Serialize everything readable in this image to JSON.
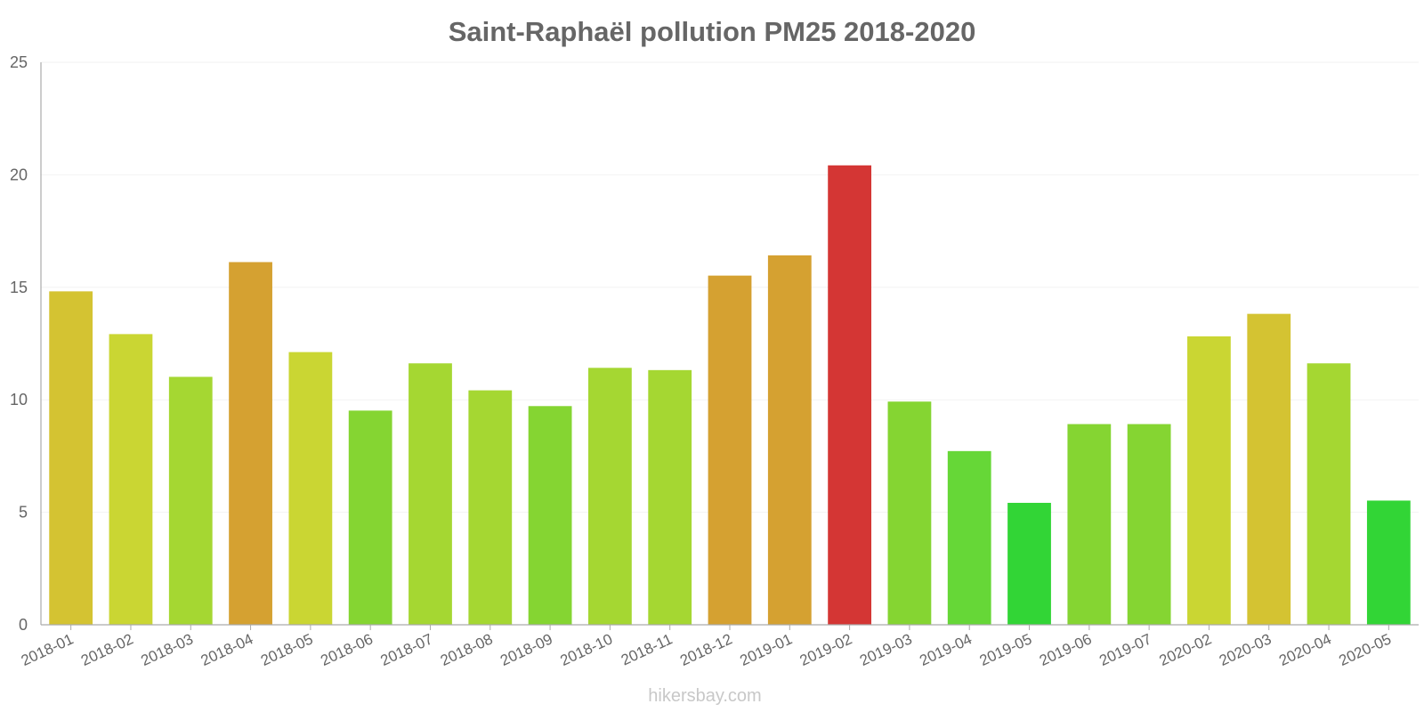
{
  "chart_data": {
    "type": "bar",
    "title": "Saint-Raphaël pollution PM25 2018-2020",
    "xlabel": "",
    "ylabel": "",
    "ylim": [
      0,
      25
    ],
    "yticks": [
      0,
      5,
      10,
      15,
      20,
      25
    ],
    "grid": true,
    "categories": [
      "2018-01",
      "2018-02",
      "2018-03",
      "2018-04",
      "2018-05",
      "2018-06",
      "2018-07",
      "2018-08",
      "2018-09",
      "2018-10",
      "2018-11",
      "2018-12",
      "2019-01",
      "2019-02",
      "2019-03",
      "2019-04",
      "2019-05",
      "2019-06",
      "2019-07",
      "2020-02",
      "2020-03",
      "2020-04",
      "2020-05"
    ],
    "values": [
      14.8,
      12.9,
      11.0,
      16.1,
      12.1,
      9.5,
      11.6,
      10.4,
      9.7,
      11.4,
      11.3,
      15.5,
      16.4,
      20.4,
      9.9,
      7.7,
      5.4,
      8.9,
      8.9,
      12.8,
      13.8,
      11.6,
      5.5
    ],
    "colors": [
      "#dbc934",
      "#d0dd35",
      "#aade34",
      "#dca633",
      "#d0dd35",
      "#89dc34",
      "#aade34",
      "#aade34",
      "#89dc34",
      "#aade34",
      "#aade34",
      "#dca633",
      "#dca633",
      "#db3836",
      "#89dc34",
      "#69de39",
      "#34dc38",
      "#89dc34",
      "#89dc34",
      "#d0dd35",
      "#dbc934",
      "#aade34",
      "#34dc38"
    ]
  },
  "watermark": "hikersbay.com"
}
